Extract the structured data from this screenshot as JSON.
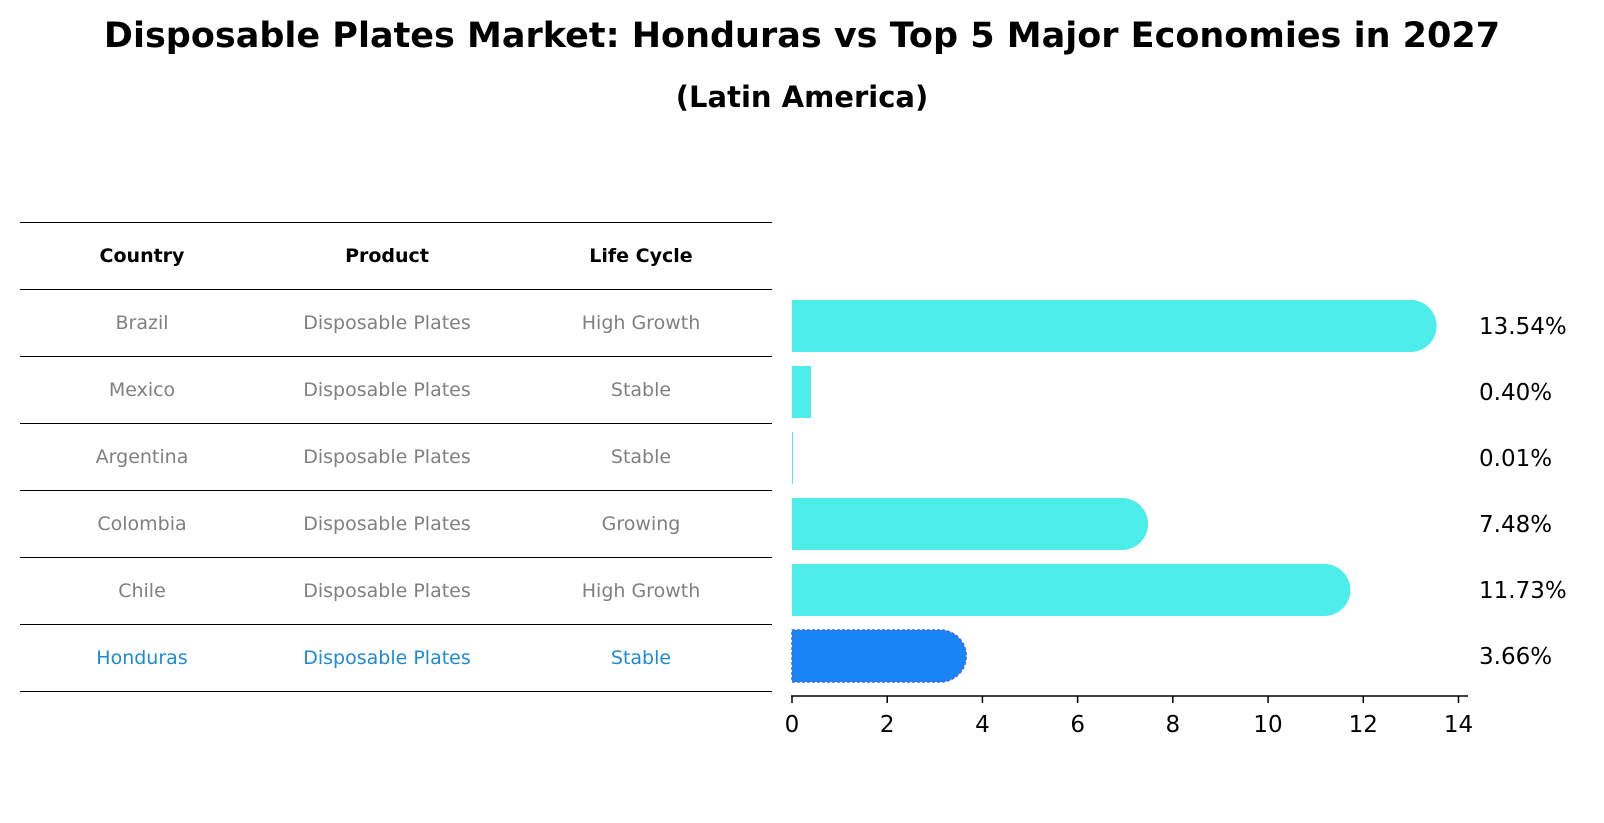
{
  "header": {
    "title": "Disposable Plates Market: Honduras vs Top 5 Major Economies in 2027",
    "subtitle": "(Latin America)"
  },
  "table": {
    "columns": [
      "Country",
      "Product",
      "Life Cycle"
    ],
    "rows": [
      {
        "country": "Brazil",
        "product": "Disposable Plates",
        "life_cycle": "High Growth"
      },
      {
        "country": "Mexico",
        "product": "Disposable Plates",
        "life_cycle": "Stable"
      },
      {
        "country": "Argentina",
        "product": "Disposable Plates",
        "life_cycle": "Stable"
      },
      {
        "country": "Colombia",
        "product": "Disposable Plates",
        "life_cycle": "Growing"
      },
      {
        "country": "Chile",
        "product": "Disposable Plates",
        "life_cycle": "High Growth"
      },
      {
        "country": "Honduras",
        "product": "Disposable Plates",
        "life_cycle": "Stable"
      }
    ]
  },
  "chart_data": {
    "type": "bar",
    "orientation": "horizontal",
    "categories": [
      "Brazil",
      "Mexico",
      "Argentina",
      "Colombia",
      "Chile",
      "Honduras"
    ],
    "values": [
      13.54,
      0.4,
      0.01,
      7.48,
      11.73,
      3.66
    ],
    "value_labels": [
      "13.54%",
      "0.40%",
      "0.01%",
      "7.48%",
      "11.73%",
      "3.66%"
    ],
    "xlim": [
      0,
      14.2
    ],
    "xticks": [
      0,
      2,
      4,
      6,
      8,
      10,
      12,
      14
    ],
    "highlight": "Honduras",
    "grid": false,
    "colors": {
      "bar": "#4deeea",
      "highlight": "#1984f5",
      "highlight_text": "#1f8ad4",
      "muted_text": "#808080",
      "axis": "#000000"
    }
  }
}
